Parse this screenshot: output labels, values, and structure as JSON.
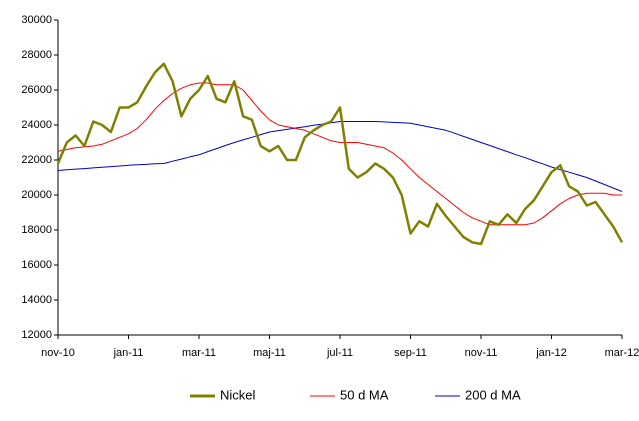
{
  "chart_data": {
    "type": "line",
    "categories": [
      "nov-10",
      null,
      null,
      null,
      null,
      null,
      null,
      null,
      "jan-11",
      null,
      null,
      null,
      null,
      null,
      null,
      null,
      "mar-11",
      null,
      null,
      null,
      null,
      null,
      null,
      null,
      "maj-11",
      null,
      null,
      null,
      null,
      null,
      null,
      null,
      "jul-11",
      null,
      null,
      null,
      null,
      null,
      null,
      null,
      "sep-11",
      null,
      null,
      null,
      null,
      null,
      null,
      null,
      "nov-11",
      null,
      null,
      null,
      null,
      null,
      null,
      null,
      "jan-12",
      null,
      null,
      null,
      null,
      null,
      null,
      null,
      "mar-12"
    ],
    "series": [
      {
        "name": "Nickel",
        "color": "#808000",
        "values": [
          21800,
          23000,
          23400,
          22800,
          24200,
          24000,
          23600,
          25000,
          25000,
          25300,
          26200,
          27000,
          27500,
          26500,
          24500,
          25500,
          26000,
          26800,
          25500,
          25300,
          26500,
          24500,
          24300,
          22800,
          22500,
          22800,
          22000,
          22000,
          23300,
          23700,
          24000,
          24200,
          25000,
          21500,
          21000,
          21300,
          21800,
          21500,
          21000,
          20000,
          17800,
          18500,
          18200,
          19500,
          18800,
          18200,
          17600,
          17300,
          17200,
          18500,
          18300,
          18900,
          18400,
          19200,
          19700,
          20500,
          21300,
          21700,
          20500,
          20200,
          19400,
          19600,
          18900,
          18200,
          17300
        ]
      },
      {
        "name": "50 d MA",
        "color": "#ff0000",
        "values": [
          22500,
          22600,
          22700,
          22750,
          22800,
          22900,
          23100,
          23300,
          23500,
          23800,
          24300,
          24900,
          25400,
          25800,
          26100,
          26300,
          26400,
          26400,
          26300,
          26300,
          26300,
          26000,
          25400,
          24800,
          24300,
          24000,
          23900,
          23800,
          23700,
          23500,
          23300,
          23100,
          23000,
          23000,
          23000,
          22900,
          22800,
          22700,
          22400,
          22000,
          21500,
          21000,
          20600,
          20200,
          19800,
          19400,
          19000,
          18700,
          18500,
          18300,
          18300,
          18300,
          18300,
          18300,
          18400,
          18700,
          19100,
          19500,
          19800,
          20000,
          20100,
          20100,
          20100,
          20000,
          20000
        ]
      },
      {
        "name": "200 d MA",
        "color": "#0000cc",
        "values": [
          21400,
          21440,
          21480,
          21510,
          21550,
          21590,
          21620,
          21660,
          21700,
          21730,
          21750,
          21780,
          21800,
          21930,
          22050,
          22180,
          22300,
          22480,
          22650,
          22830,
          23000,
          23150,
          23300,
          23450,
          23600,
          23680,
          23750,
          23830,
          23900,
          23980,
          24050,
          24130,
          24200,
          24200,
          24200,
          24200,
          24200,
          24180,
          24150,
          24130,
          24100,
          24000,
          23900,
          23800,
          23700,
          23530,
          23350,
          23180,
          23000,
          22830,
          22650,
          22480,
          22300,
          22130,
          21950,
          21780,
          21600,
          21450,
          21300,
          21150,
          21000,
          20800,
          20600,
          20400,
          20200
        ]
      }
    ],
    "ylim": [
      12000,
      30000
    ],
    "yticks": [
      12000,
      14000,
      16000,
      18000,
      20000,
      22000,
      24000,
      26000,
      28000,
      30000
    ],
    "grid": false,
    "legend": "bottom"
  }
}
